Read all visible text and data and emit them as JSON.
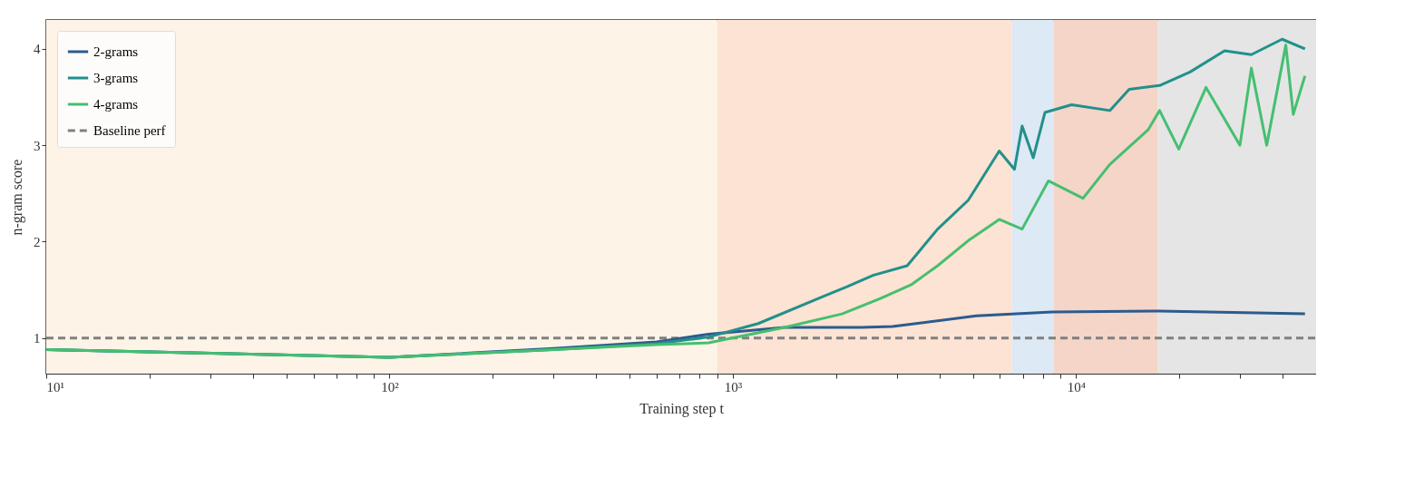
{
  "chart_data": {
    "type": "line",
    "xlabel": "Training step t",
    "ylabel": "n-gram score",
    "log": "x",
    "xlim": [
      10,
      50000
    ],
    "ylim": [
      0.63,
      4.3
    ],
    "xticks": [
      {
        "value": 10,
        "label": "10¹"
      },
      {
        "value": 20,
        "label": null
      },
      {
        "value": 30,
        "label": null
      },
      {
        "value": 40,
        "label": null
      },
      {
        "value": 50,
        "label": null
      },
      {
        "value": 60,
        "label": null
      },
      {
        "value": 70,
        "label": null
      },
      {
        "value": 80,
        "label": null
      },
      {
        "value": 90,
        "label": null
      },
      {
        "value": 100,
        "label": "10²"
      },
      {
        "value": 200,
        "label": null
      },
      {
        "value": 300,
        "label": null
      },
      {
        "value": 400,
        "label": null
      },
      {
        "value": 500,
        "label": null
      },
      {
        "value": 600,
        "label": null
      },
      {
        "value": 700,
        "label": null
      },
      {
        "value": 800,
        "label": null
      },
      {
        "value": 900,
        "label": null
      },
      {
        "value": 1000,
        "label": "10³"
      },
      {
        "value": 2000,
        "label": null
      },
      {
        "value": 3000,
        "label": null
      },
      {
        "value": 4000,
        "label": null
      },
      {
        "value": 5000,
        "label": null
      },
      {
        "value": 6000,
        "label": null
      },
      {
        "value": 7000,
        "label": null
      },
      {
        "value": 8000,
        "label": null
      },
      {
        "value": 9000,
        "label": null
      },
      {
        "value": 10000,
        "label": "10⁴"
      },
      {
        "value": 20000,
        "label": null
      },
      {
        "value": 30000,
        "label": null
      },
      {
        "value": 40000,
        "label": null
      }
    ],
    "yticks": [
      1,
      2,
      3,
      4
    ],
    "grid": false,
    "legend": "top left",
    "line_style": "solid",
    "marker": "none",
    "series": [
      {
        "name": "2-grams",
        "color": "#2c5b8e",
        "x": [
          10,
          100,
          300,
          600,
          850,
          1416,
          2370,
          2920,
          5120,
          8500,
          17500,
          46400
        ],
        "values": [
          0.88,
          0.8,
          0.89,
          0.96,
          1.04,
          1.11,
          1.11,
          1.12,
          1.23,
          1.27,
          1.28,
          1.25
        ]
      },
      {
        "name": "3-grams",
        "color": "#22908b",
        "x": [
          10,
          100,
          300,
          600,
          850,
          1186,
          1833,
          2143,
          2560,
          3220,
          3950,
          4850,
          5970,
          6610,
          6960,
          7500,
          8110,
          9700,
          12530,
          14270,
          17500,
          21470,
          27060,
          32380,
          39800,
          46400
        ],
        "values": [
          0.88,
          0.8,
          0.88,
          0.94,
          1.01,
          1.15,
          1.43,
          1.53,
          1.65,
          1.75,
          2.13,
          2.43,
          2.94,
          2.75,
          3.2,
          2.87,
          3.34,
          3.42,
          3.36,
          3.58,
          3.62,
          3.76,
          3.98,
          3.94,
          4.1,
          4.0
        ]
      },
      {
        "name": "4-grams",
        "color": "#45bf70",
        "x": [
          10,
          100,
          300,
          600,
          850,
          1416,
          2080,
          2690,
          3300,
          3950,
          4850,
          5970,
          6960,
          8300,
          10470,
          12530,
          16200,
          17500,
          19900,
          23900,
          30000,
          32380,
          35900,
          40800,
          42900,
          46400
        ],
        "values": [
          0.88,
          0.8,
          0.88,
          0.93,
          0.95,
          1.11,
          1.25,
          1.41,
          1.55,
          1.75,
          2.01,
          2.23,
          2.13,
          2.63,
          2.45,
          2.8,
          3.16,
          3.36,
          2.96,
          3.6,
          3.0,
          3.8,
          3.0,
          4.04,
          3.32,
          3.72
        ]
      }
    ],
    "ref_lines": [
      {
        "axis": "y",
        "value": 1,
        "label": "Baseline perf",
        "color": "#808080",
        "line_style": "dashed"
      }
    ],
    "bands": [
      {
        "axis": "x",
        "from": 10,
        "to": 900,
        "color": "#fdf3e7"
      },
      {
        "axis": "x",
        "from": 900,
        "to": 6500,
        "color": "#fde3d3"
      },
      {
        "axis": "x",
        "from": 6500,
        "to": 8600,
        "color": "#dde9f5"
      },
      {
        "axis": "x",
        "from": 8600,
        "to": 17300,
        "color": "#f5d5c8"
      },
      {
        "axis": "x",
        "from": 17300,
        "to": 50000,
        "color": "#e5e5e5"
      }
    ]
  }
}
